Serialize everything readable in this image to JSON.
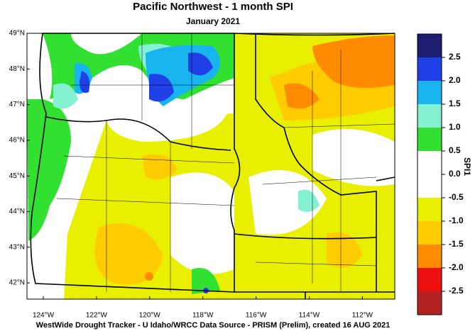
{
  "title": "Pacific Northwest - 1 month SPI",
  "subtitle": "January 2021",
  "map": {
    "lat_labels": [
      "49°N",
      "48°N",
      "47°N",
      "46°N",
      "45°N",
      "44°N",
      "43°N",
      "42°N"
    ],
    "lon_labels": [
      "124°W",
      "122°W",
      "120°W",
      "118°W",
      "116°W",
      "114°W",
      "112°W"
    ]
  },
  "legend": {
    "title": "SPI1",
    "labels": [
      "2.5",
      "2.0",
      "1.5",
      "1.0",
      "0.5",
      "0.0",
      "-0.5",
      "-1.0",
      "-1.5",
      "-2.0",
      "-2.5"
    ],
    "colors": [
      "#1c1c70",
      "#1e40e6",
      "#18b4f0",
      "#84f2d2",
      "#32e032",
      "#ffffff",
      "#ffffff",
      "#e8f000",
      "#ffcc00",
      "#ff8c00",
      "#ee1010",
      "#b22222"
    ]
  },
  "footer": "WestWide Drought Tracker - U Idaho/WRCC  Data Source - PRISM (Prelim), created 16 AUG 2021"
}
